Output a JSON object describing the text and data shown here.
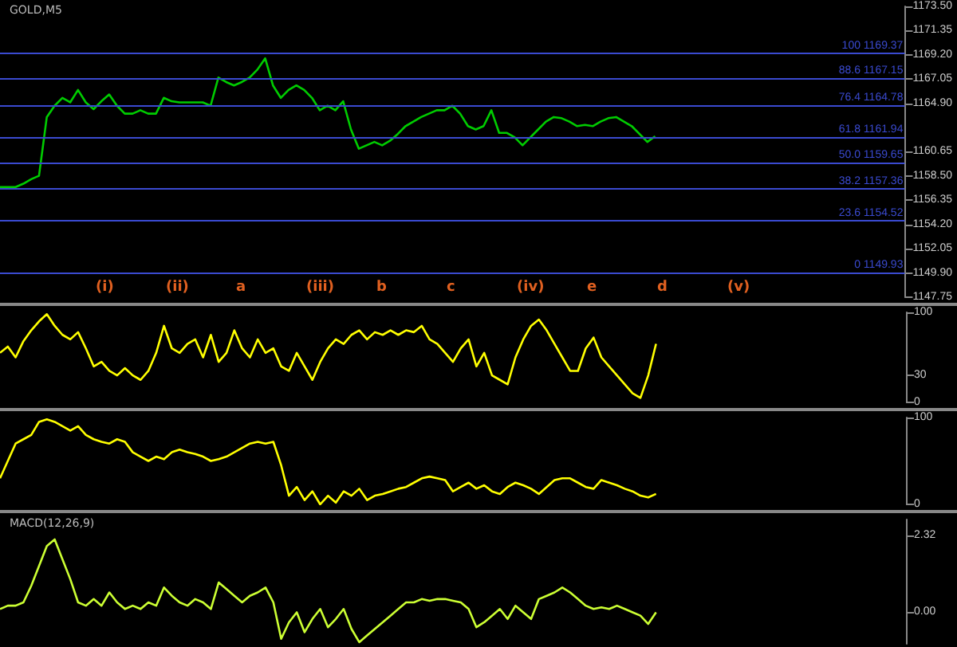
{
  "chart_data": [
    {
      "type": "line",
      "title": "GOLD,M5",
      "tick_labels": "y",
      "grid": false,
      "marker": "none",
      "categories": [
        null,
        null,
        null,
        null,
        null,
        null,
        null,
        null,
        null,
        null,
        null,
        null,
        null,
        null,
        null,
        null,
        null,
        null,
        null,
        null,
        null,
        null,
        null,
        null,
        null,
        null,
        null,
        null,
        null,
        null,
        null,
        null,
        null,
        null,
        null,
        null,
        null,
        null,
        null,
        null,
        null,
        null,
        null,
        null,
        null,
        null,
        null,
        null,
        null,
        null,
        null,
        null,
        null,
        null,
        null,
        null,
        null,
        null,
        null,
        null,
        null,
        null,
        null,
        null,
        null,
        null,
        null,
        null,
        null,
        null,
        null,
        null,
        null,
        null,
        null,
        null,
        null,
        null,
        null,
        null,
        null,
        null,
        null,
        null,
        null,
        null,
        null,
        null,
        null,
        null,
        null,
        null,
        null,
        null,
        null,
        null,
        null,
        null,
        null,
        null,
        null,
        null,
        null,
        null,
        null,
        null,
        null,
        null,
        null,
        null,
        null,
        null,
        null,
        null,
        null,
        null,
        null
      ],
      "ylim": [
        1147.75,
        1173.5
      ],
      "yticks": [
        1147.75,
        {
          "value": 1149.9,
          "label": "1149.90"
        },
        1152.05,
        {
          "value": 1154.2,
          "label": "1154.20"
        },
        1156.35,
        {
          "value": 1158.5,
          "label": "1158.50"
        },
        1160.65,
        {
          "value": 1164.9,
          "label": "1164.90"
        },
        1167.05,
        {
          "value": 1169.2,
          "label": "1169.20"
        },
        1171.35,
        {
          "value": 1173.5,
          "label": "1173.50"
        }
      ],
      "series": [
        {
          "color": "#00cc00",
          "values": [
            1157.5,
            1157.5,
            1157.5,
            1157.8,
            1158.2,
            1158.5,
            1163.7,
            1164.7,
            1165.4,
            1165.0,
            1166.1,
            1165.0,
            1164.4,
            1165.1,
            1165.7,
            1164.7,
            1164.0,
            1164.0,
            1164.3,
            1164.0,
            1164.0,
            1165.4,
            1165.1,
            1165.0,
            1165.0,
            1165.0,
            1165.0,
            1164.7,
            1167.2,
            1166.8,
            1166.5,
            1166.8,
            1167.2,
            1167.9,
            1168.9,
            1166.5,
            1165.4,
            1166.1,
            1166.5,
            1166.1,
            1165.4,
            1164.3,
            1164.7,
            1164.3,
            1165.1,
            1162.6,
            1160.9,
            1161.2,
            1161.5,
            1161.2,
            1161.6,
            1162.2,
            1162.9,
            1163.3,
            1163.7,
            1164.0,
            1164.3,
            1164.3,
            1164.7,
            1164.0,
            1162.9,
            1162.6,
            1162.9,
            1164.3,
            1162.3,
            1162.3,
            1161.9,
            1161.2,
            1161.9,
            1162.6,
            1163.3,
            1163.7,
            1163.6,
            1163.3,
            1162.9,
            1163.0,
            1162.9,
            1163.3,
            1163.6,
            1163.7,
            1163.3,
            1162.9,
            1162.2,
            1161.5,
            1162.0,
            null,
            null,
            null,
            null,
            null,
            null,
            null,
            null,
            null,
            null,
            null,
            null,
            null,
            null,
            null,
            null,
            null,
            null,
            null,
            null,
            null,
            null,
            null,
            null,
            null,
            null,
            null,
            null,
            null,
            null,
            null,
            null
          ]
        }
      ],
      "ref_lines": [
        {
          "axis": "y",
          "value": 1169.37,
          "label": "100 1169.37",
          "color": "#3a4ad0"
        },
        {
          "axis": "y",
          "value": 1167.15,
          "label": "88.6 1167.15",
          "color": "#3a4ad0"
        },
        {
          "axis": "y",
          "value": 1164.78,
          "label": "76.4 1164.78",
          "color": "#3a4ad0"
        },
        {
          "axis": "y",
          "value": 1161.94,
          "label": "61.8 1161.94",
          "color": "#3a4ad0"
        },
        {
          "axis": "y",
          "value": 1159.65,
          "label": "50.0 1159.65",
          "color": "#3a4ad0"
        },
        {
          "axis": "y",
          "value": 1157.36,
          "label": "38.2 1157.36",
          "color": "#3a4ad0"
        },
        {
          "axis": "y",
          "value": 1154.52,
          "label": "23.6 1154.52",
          "color": "#3a4ad0"
        },
        {
          "axis": "y",
          "value": 1149.93,
          "label": "0 1149.93",
          "color": "#3a4ad0"
        }
      ],
      "annotations": [
        "(i)",
        "(ii)",
        "a",
        "(iii)",
        "b",
        "c",
        "(iv)",
        "e",
        "d",
        "(v)"
      ]
    },
    {
      "type": "line",
      "tick_labels": "y",
      "grid": false,
      "marker": "none",
      "categories": [
        null,
        null,
        null,
        null,
        null,
        null,
        null,
        null,
        null,
        null,
        null,
        null,
        null,
        null,
        null,
        null,
        null,
        null,
        null,
        null,
        null,
        null,
        null,
        null,
        null,
        null,
        null,
        null,
        null,
        null,
        null,
        null,
        null,
        null,
        null,
        null,
        null,
        null,
        null,
        null,
        null,
        null,
        null,
        null,
        null,
        null,
        null,
        null,
        null,
        null,
        null,
        null,
        null,
        null,
        null,
        null,
        null,
        null,
        null,
        null,
        null,
        null,
        null,
        null,
        null,
        null,
        null,
        null,
        null,
        null,
        null,
        null,
        null,
        null,
        null,
        null,
        null,
        null,
        null,
        null,
        null,
        null,
        null,
        null,
        null,
        null,
        null,
        null,
        null,
        null,
        null,
        null,
        null,
        null,
        null,
        null,
        null,
        null,
        null,
        null,
        null,
        null,
        null,
        null,
        null,
        null,
        null,
        null,
        null,
        null,
        null,
        null,
        null,
        null,
        null,
        null,
        null
      ],
      "ylim": [
        0,
        100
      ],
      "yticks": [
        0,
        30,
        100
      ],
      "series": [
        {
          "color": "#ffff00",
          "values": [
            55,
            62,
            50,
            68,
            80,
            90,
            98,
            85,
            75,
            70,
            78,
            60,
            40,
            45,
            35,
            30,
            38,
            30,
            25,
            35,
            55,
            85,
            60,
            55,
            65,
            70,
            50,
            75,
            45,
            55,
            80,
            60,
            50,
            70,
            55,
            60,
            40,
            35,
            55,
            40,
            25,
            45,
            60,
            70,
            65,
            75,
            80,
            70,
            78,
            75,
            80,
            75,
            80,
            78,
            85,
            70,
            65,
            55,
            45,
            60,
            70,
            40,
            55,
            30,
            25,
            20,
            50,
            70,
            85,
            92,
            80,
            65,
            50,
            35,
            35,
            60,
            72,
            50,
            40,
            30,
            20,
            10,
            5,
            30,
            65,
            null,
            null,
            null,
            null,
            null,
            null,
            null,
            null,
            null,
            null,
            null,
            null,
            null,
            null,
            null,
            null,
            null,
            null,
            null,
            null,
            null,
            null,
            null,
            null,
            null,
            null,
            null,
            null,
            null,
            null,
            null,
            null
          ]
        }
      ]
    },
    {
      "type": "line",
      "tick_labels": "y",
      "grid": false,
      "marker": "none",
      "categories": [
        null,
        null,
        null,
        null,
        null,
        null,
        null,
        null,
        null,
        null,
        null,
        null,
        null,
        null,
        null,
        null,
        null,
        null,
        null,
        null,
        null,
        null,
        null,
        null,
        null,
        null,
        null,
        null,
        null,
        null,
        null,
        null,
        null,
        null,
        null,
        null,
        null,
        null,
        null,
        null,
        null,
        null,
        null,
        null,
        null,
        null,
        null,
        null,
        null,
        null,
        null,
        null,
        null,
        null,
        null,
        null,
        null,
        null,
        null,
        null,
        null,
        null,
        null,
        null,
        null,
        null,
        null,
        null,
        null,
        null,
        null,
        null,
        null,
        null,
        null,
        null,
        null,
        null,
        null,
        null,
        null,
        null,
        null,
        null,
        null,
        null,
        null,
        null,
        null,
        null,
        null,
        null,
        null,
        null,
        null,
        null,
        null,
        null,
        null,
        null,
        null,
        null,
        null,
        null,
        null,
        null,
        null,
        null,
        null,
        null,
        null,
        null,
        null,
        null,
        null,
        null,
        null
      ],
      "ylim": [
        0,
        100
      ],
      "yticks": [
        0,
        100
      ],
      "series": [
        {
          "color": "#ffff00",
          "values": [
            30,
            50,
            70,
            75,
            80,
            95,
            98,
            95,
            90,
            85,
            90,
            80,
            75,
            72,
            70,
            75,
            72,
            60,
            55,
            50,
            55,
            52,
            60,
            63,
            60,
            58,
            55,
            50,
            52,
            55,
            60,
            65,
            70,
            72,
            70,
            72,
            45,
            10,
            20,
            5,
            15,
            0,
            10,
            2,
            15,
            10,
            18,
            5,
            10,
            12,
            15,
            18,
            20,
            25,
            30,
            32,
            30,
            28,
            15,
            20,
            25,
            18,
            22,
            15,
            12,
            20,
            25,
            22,
            18,
            12,
            20,
            28,
            30,
            30,
            25,
            20,
            18,
            28,
            25,
            22,
            18,
            15,
            10,
            8,
            12,
            null,
            null,
            null,
            null,
            null,
            null,
            null,
            null,
            null,
            null,
            null,
            null,
            null,
            null,
            null,
            null,
            null,
            null,
            null,
            null,
            null,
            null,
            null,
            null,
            null,
            null,
            null,
            null,
            null,
            null,
            null,
            null
          ]
        }
      ]
    },
    {
      "type": "line",
      "title": "MACD(12,26,9)",
      "tick_labels": "y",
      "grid": false,
      "marker": "none",
      "categories": [
        null,
        null,
        null,
        null,
        null,
        null,
        null,
        null,
        null,
        null,
        null,
        null,
        null,
        null,
        null,
        null,
        null,
        null,
        null,
        null,
        null,
        null,
        null,
        null,
        null,
        null,
        null,
        null,
        null,
        null,
        null,
        null,
        null,
        null,
        null,
        null,
        null,
        null,
        null,
        null,
        null,
        null,
        null,
        null,
        null,
        null,
        null,
        null,
        null,
        null,
        null,
        null,
        null,
        null,
        null,
        null,
        null,
        null,
        null,
        null,
        null,
        null,
        null,
        null,
        null,
        null,
        null,
        null,
        null,
        null,
        null,
        null,
        null,
        null,
        null,
        null,
        null,
        null,
        null,
        null,
        null,
        null,
        null,
        null,
        null,
        null,
        null,
        null,
        null,
        null,
        null,
        null,
        null,
        null,
        null,
        null,
        null,
        null,
        null,
        null,
        null,
        null,
        null,
        null,
        null,
        null,
        null,
        null,
        null,
        null,
        null,
        null,
        null,
        null,
        null,
        null,
        null
      ],
      "ylim": [
        -0.95,
        2.8
      ],
      "yticks": [
        {
          "value": 0,
          "label": "0.00"
        },
        2.32
      ],
      "series": [
        {
          "color": "#ccff33",
          "values": [
            0.1,
            0.2,
            0.2,
            0.3,
            0.8,
            1.4,
            2.0,
            2.2,
            1.6,
            1.0,
            0.3,
            0.2,
            0.4,
            0.2,
            0.6,
            0.3,
            0.1,
            0.2,
            0.1,
            0.3,
            0.2,
            0.75,
            0.5,
            0.3,
            0.2,
            0.4,
            0.3,
            0.1,
            0.9,
            0.7,
            0.5,
            0.3,
            0.5,
            0.6,
            0.75,
            0.3,
            -0.8,
            -0.3,
            0,
            -0.6,
            -0.2,
            0.1,
            -0.45,
            -0.2,
            0.1,
            -0.5,
            -0.9,
            -0.7,
            -0.5,
            -0.3,
            -0.1,
            0.1,
            0.3,
            0.3,
            0.4,
            0.35,
            0.4,
            0.4,
            0.35,
            0.3,
            0.1,
            -0.45,
            -0.3,
            -0.1,
            0.1,
            -0.2,
            0.2,
            0,
            -0.2,
            0.4,
            0.5,
            0.6,
            0.75,
            0.6,
            0.4,
            0.2,
            0.1,
            0.15,
            0.1,
            0.2,
            0.1,
            0,
            -0.1,
            -0.35,
            0,
            null,
            null,
            null,
            null,
            null,
            null,
            null,
            null,
            null,
            null,
            null,
            null,
            null,
            null,
            null,
            null,
            null,
            null,
            null,
            null,
            null,
            null,
            null,
            null,
            null,
            null,
            null,
            null,
            null,
            null,
            null,
            null
          ]
        }
      ]
    }
  ]
}
